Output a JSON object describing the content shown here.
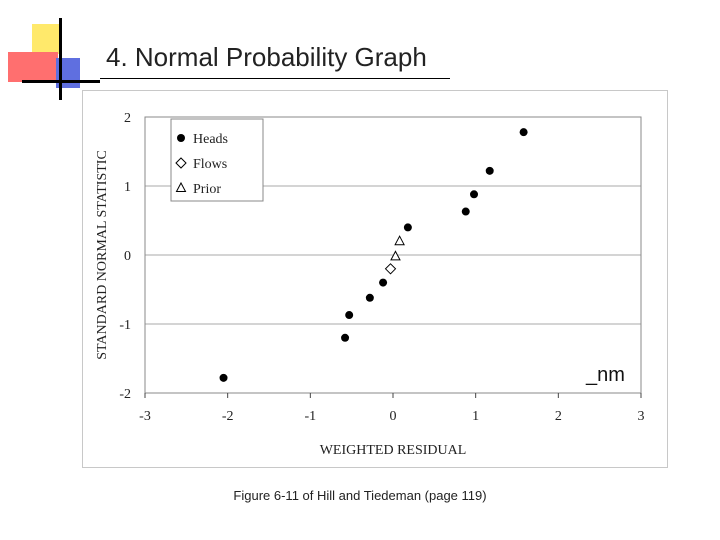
{
  "slide": {
    "title": "4. Normal Probability Graph",
    "caption": "Figure 6-11 of Hill and Tiedeman (page 119)",
    "annotation": "_nm"
  },
  "chart_data": {
    "type": "scatter",
    "xlabel": "WEIGHTED RESIDUAL",
    "ylabel": "STANDARD NORMAL STATISTIC",
    "xlim": [
      -3,
      3
    ],
    "ylim": [
      -2,
      2
    ],
    "xticks": [
      -3,
      -2,
      -1,
      0,
      1,
      2,
      3
    ],
    "yticks": [
      -2,
      -1,
      0,
      1,
      2
    ],
    "grid": "horizontal",
    "legend_position": "top-left",
    "series": [
      {
        "name": "Heads",
        "marker": "filled-circle",
        "color": "#000000",
        "points": [
          {
            "x": -2.05,
            "y": -1.78
          },
          {
            "x": -0.58,
            "y": -1.2
          },
          {
            "x": -0.53,
            "y": -0.87
          },
          {
            "x": -0.28,
            "y": -0.62
          },
          {
            "x": -0.12,
            "y": -0.4
          },
          {
            "x": 0.18,
            "y": 0.4
          },
          {
            "x": 0.88,
            "y": 0.63
          },
          {
            "x": 0.98,
            "y": 0.88
          },
          {
            "x": 1.17,
            "y": 1.22
          },
          {
            "x": 1.58,
            "y": 1.78
          }
        ]
      },
      {
        "name": "Flows",
        "marker": "open-diamond",
        "color": "#000000",
        "points": [
          {
            "x": -0.03,
            "y": -0.2
          }
        ]
      },
      {
        "name": "Prior",
        "marker": "open-triangle",
        "color": "#000000",
        "points": [
          {
            "x": 0.03,
            "y": -0.02
          },
          {
            "x": 0.08,
            "y": 0.2
          }
        ]
      }
    ]
  }
}
